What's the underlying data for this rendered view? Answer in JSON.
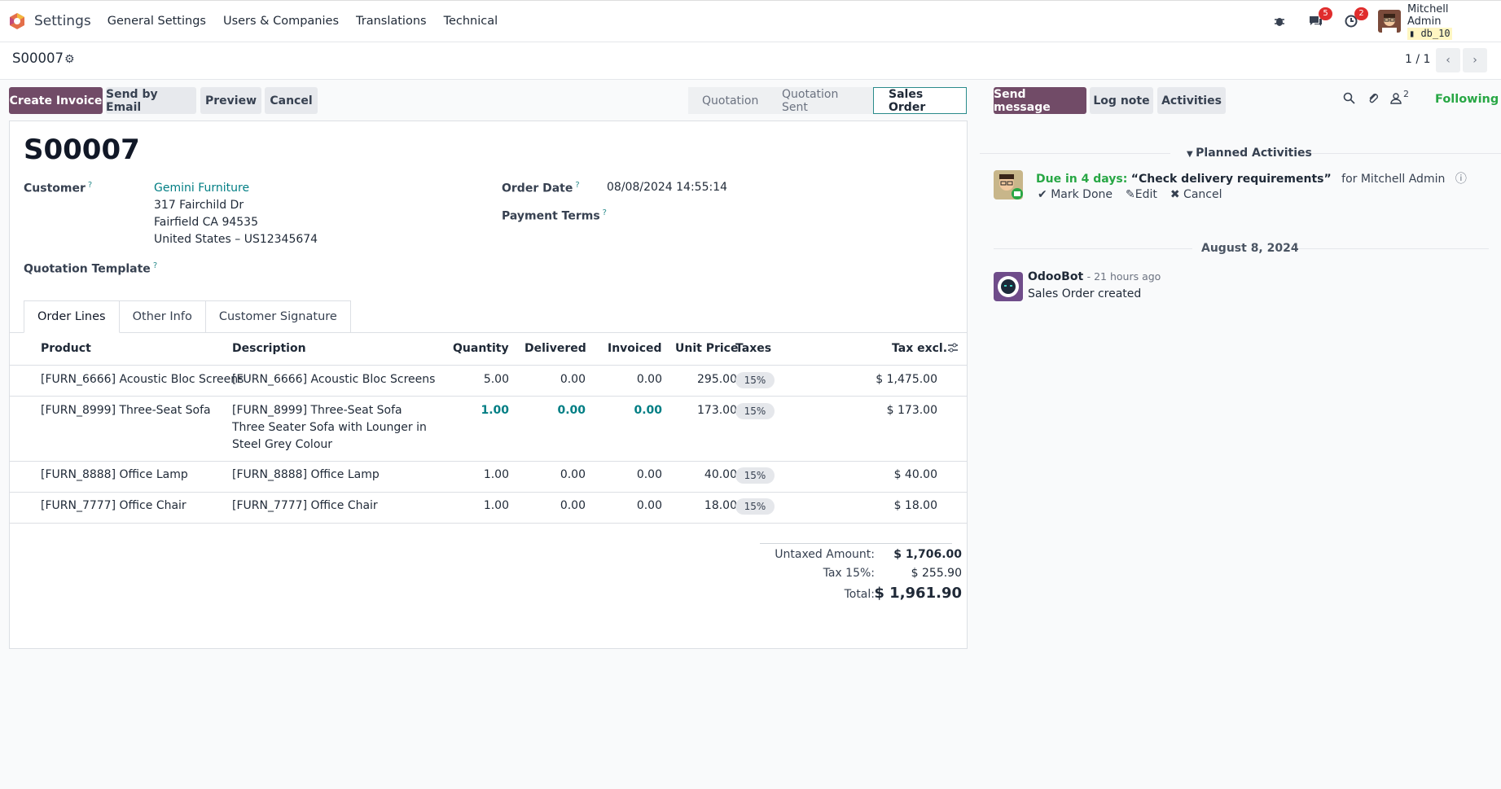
{
  "navbar": {
    "app_name": "Settings",
    "menu": [
      "General Settings",
      "Users & Companies",
      "Translations",
      "Technical"
    ],
    "messages_badge": "5",
    "activities_badge": "2",
    "user_name": "Mitchell Admin",
    "db_name": "db_10"
  },
  "breadcrumb": {
    "record": "S00007",
    "pager": "1 / 1"
  },
  "actions": {
    "create_invoice": "Create Invoice",
    "send_email": "Send by Email",
    "preview": "Preview",
    "cancel": "Cancel"
  },
  "statusbar": {
    "stages": [
      "Quotation",
      "Quotation Sent",
      "Sales Order"
    ],
    "active": "Sales Order"
  },
  "form": {
    "title": "S00007",
    "customer_label": "Customer",
    "customer_name": "Gemini Furniture",
    "address_1": "317 Fairchild Dr",
    "address_2": "Fairfield CA 94535",
    "address_3": "United States – US12345674",
    "quotation_template_label": "Quotation Template",
    "order_date_label": "Order Date",
    "order_date": "08/08/2024 14:55:14",
    "payment_terms_label": "Payment Terms",
    "help_mark": "?"
  },
  "tabs": [
    "Order Lines",
    "Other Info",
    "Customer Signature"
  ],
  "table": {
    "columns": [
      "Product",
      "Description",
      "Quantity",
      "Delivered",
      "Invoiced",
      "Unit Price",
      "Taxes",
      "Tax excl."
    ],
    "rows": [
      {
        "product": "[FURN_6666] Acoustic Bloc Screens",
        "desc": [
          "[FURN_6666] Acoustic Bloc Screens"
        ],
        "qty": "5.00",
        "delivered": "0.00",
        "invoiced": "0.00",
        "price": "295.00",
        "tax": "15%",
        "subtotal": "$ 1,475.00"
      },
      {
        "product": "[FURN_8999] Three-Seat Sofa",
        "desc": [
          "[FURN_8999] Three-Seat Sofa",
          "Three Seater Sofa with Lounger in",
          "Steel Grey Colour"
        ],
        "qty": "1.00",
        "delivered": "0.00",
        "invoiced": "0.00",
        "price": "173.00",
        "tax": "15%",
        "subtotal": "$ 173.00"
      },
      {
        "product": "[FURN_8888] Office Lamp",
        "desc": [
          "[FURN_8888] Office Lamp"
        ],
        "qty": "1.00",
        "delivered": "0.00",
        "invoiced": "0.00",
        "price": "40.00",
        "tax": "15%",
        "subtotal": "$ 40.00"
      },
      {
        "product": "[FURN_7777] Office Chair",
        "desc": [
          "[FURN_7777] Office Chair"
        ],
        "qty": "1.00",
        "delivered": "0.00",
        "invoiced": "0.00",
        "price": "18.00",
        "tax": "15%",
        "subtotal": "$ 18.00"
      }
    ]
  },
  "totals": {
    "untaxed_label": "Untaxed Amount:",
    "untaxed": "$ 1,706.00",
    "tax_label": "Tax 15%:",
    "tax": "$ 255.90",
    "total_label": "Total:",
    "total": "$ 1,961.90"
  },
  "chatter": {
    "send_message": "Send message",
    "log_note": "Log note",
    "activities": "Activities",
    "followers_count": "2",
    "following": "Following",
    "planned_title": "Planned Activities",
    "due": "Due in 4 days:",
    "activity_summary": "“Check delivery requirements”",
    "activity_for": "for Mitchell Admin",
    "mark_done": "Mark Done",
    "edit": "Edit",
    "cancel": "Cancel",
    "date_separator": "August 8, 2024",
    "author": "OdooBot",
    "time": "- 21 hours ago",
    "message": "Sales Order created"
  }
}
